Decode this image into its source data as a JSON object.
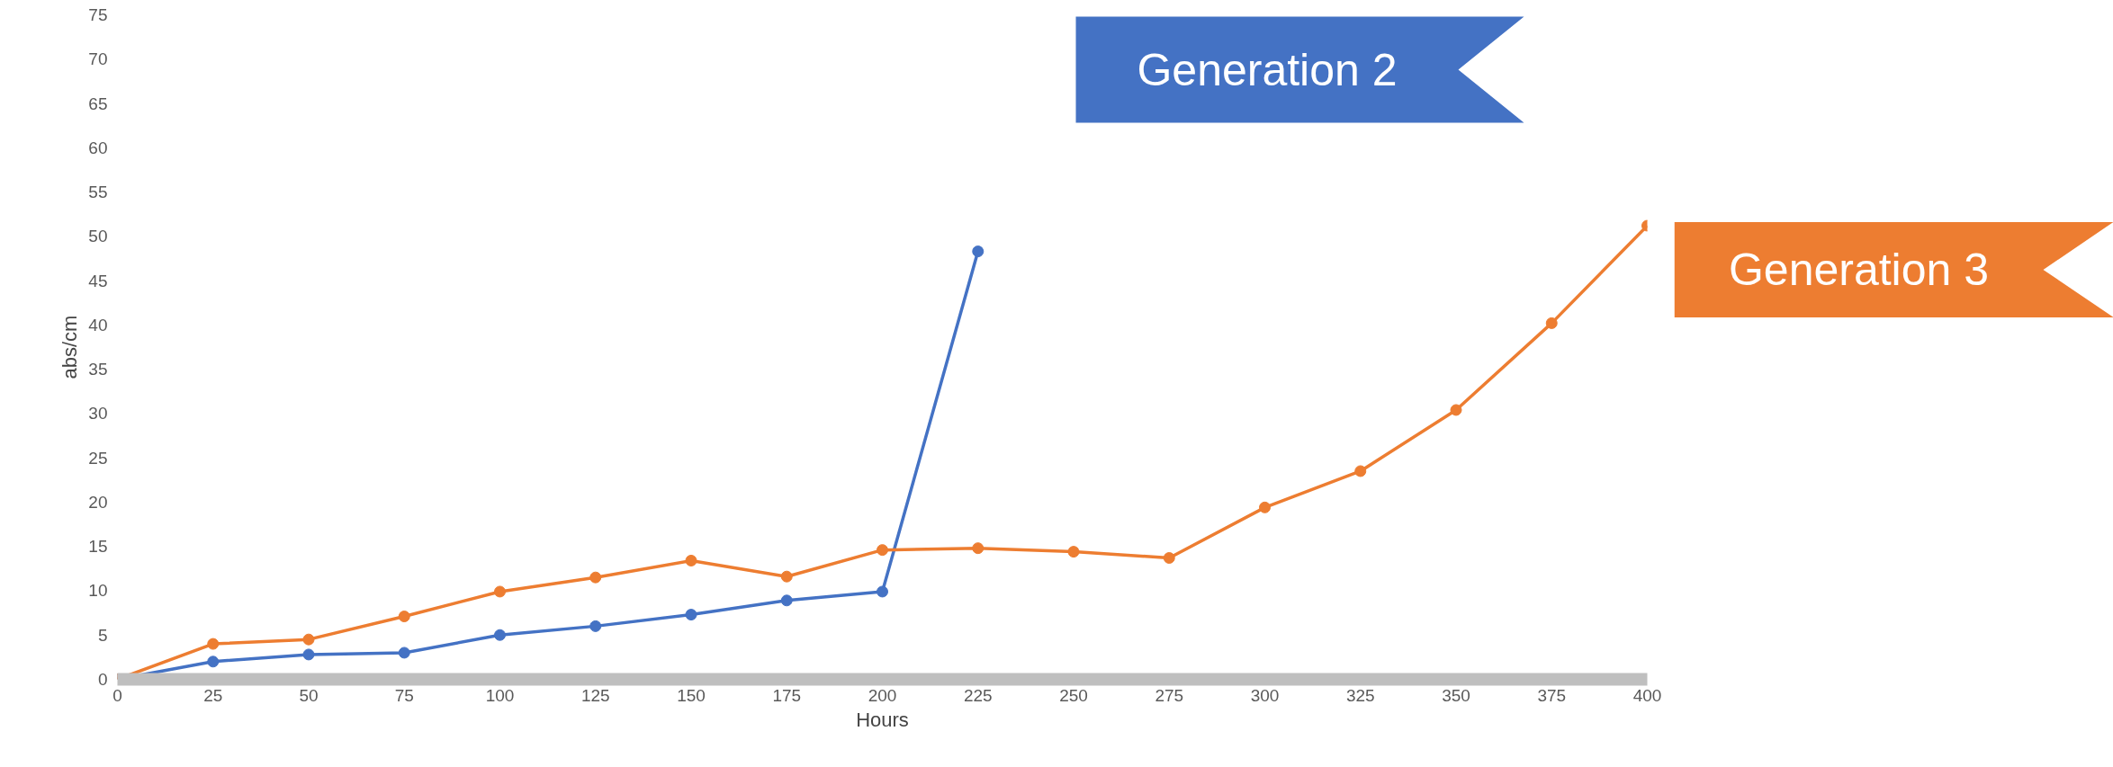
{
  "chart_data": {
    "type": "line",
    "xlabel": "Hours",
    "ylabel": "abs/cm",
    "xlim": [
      0,
      400
    ],
    "ylim": [
      0,
      75
    ],
    "xticks": [
      0,
      25,
      50,
      75,
      100,
      125,
      150,
      175,
      200,
      225,
      250,
      275,
      300,
      325,
      350,
      375,
      400
    ],
    "yticks": [
      0,
      5,
      10,
      15,
      20,
      25,
      30,
      35,
      40,
      45,
      50,
      55,
      60,
      65,
      70,
      75
    ],
    "grid": false,
    "marker": "circle",
    "line_style": "solid",
    "series": [
      {
        "name": "Generation 2",
        "color": "#4472c4",
        "x": [
          0,
          25,
          50,
          75,
          100,
          125,
          150,
          175,
          200,
          225
        ],
        "values": [
          0,
          2,
          2.8,
          3,
          5,
          6,
          7.3,
          8.9,
          9.9,
          48.3
        ]
      },
      {
        "name": "Generation 3",
        "color": "#ed7d31",
        "x": [
          0,
          25,
          50,
          75,
          100,
          125,
          150,
          175,
          200,
          225,
          250,
          275,
          300,
          325,
          350,
          375,
          400
        ],
        "values": [
          0,
          4,
          4.5,
          7.1,
          9.9,
          11.5,
          13.4,
          11.6,
          14.6,
          14.8,
          14.4,
          13.7,
          19.4,
          23.5,
          30.4,
          40.2,
          51.2
        ]
      }
    ]
  }
}
